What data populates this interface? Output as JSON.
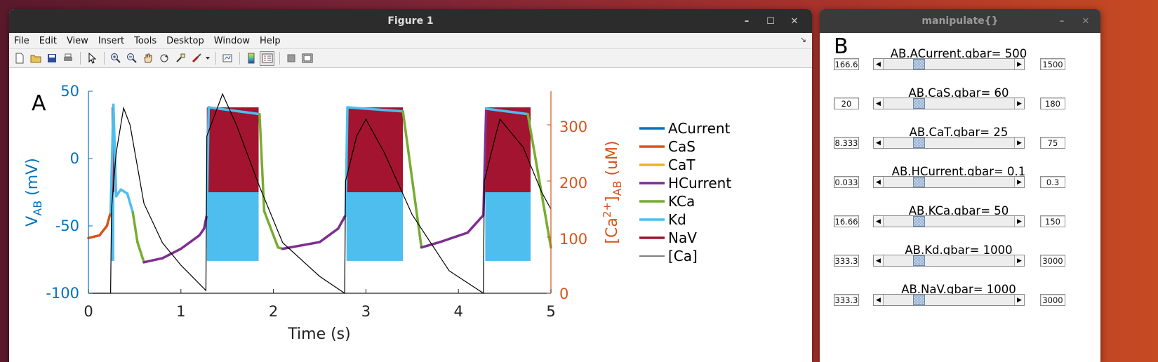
{
  "figure_window": {
    "title": "Figure 1",
    "menu": [
      "File",
      "Edit",
      "View",
      "Insert",
      "Tools",
      "Desktop",
      "Window",
      "Help"
    ],
    "panel_label": "A"
  },
  "manipulate_window": {
    "title": "manipulate{}",
    "panel_label": "B",
    "sliders": [
      {
        "label": "AB.ACurrent.gbar= 500",
        "min": "166.6",
        "max": "1500",
        "value": 500
      },
      {
        "label": "AB.CaS.gbar= 60",
        "min": "20",
        "max": "180",
        "value": 60
      },
      {
        "label": "AB.CaT.gbar= 25",
        "min": "8.333",
        "max": "75",
        "value": 25
      },
      {
        "label": "AB.HCurrent.gbar= 0.1",
        "min": "0.033",
        "max": "0.3",
        "value": 0.1
      },
      {
        "label": "AB.KCa.gbar= 50",
        "min": "16.66",
        "max": "150",
        "value": 50
      },
      {
        "label": "AB.Kd.gbar= 1000",
        "min": "333.3",
        "max": "3000",
        "value": 1000
      },
      {
        "label": "AB.NaV.gbar= 1000",
        "min": "333.3",
        "max": "3000",
        "value": 1000
      }
    ]
  },
  "chart_data": {
    "type": "line",
    "xlabel": "Time (s)",
    "ylabel_left_main": "V",
    "ylabel_left_sub": "AB",
    "ylabel_left_unit": " (mV)",
    "ylabel_right_pre": "[Ca",
    "ylabel_right_sup": "2+",
    "ylabel_right_mid": "]",
    "ylabel_right_sub": "AB",
    "ylabel_right_unit": " (uM)",
    "xlim": [
      0,
      5
    ],
    "ylim_left": [
      -100,
      50
    ],
    "ylim_right": [
      0,
      360
    ],
    "x_ticks": [
      "0",
      "1",
      "2",
      "3",
      "4",
      "5"
    ],
    "y_left_ticks": [
      "50",
      "0",
      "-50",
      "-100"
    ],
    "y_right_ticks": [
      "300",
      "200",
      "100",
      "0"
    ],
    "legend": [
      {
        "name": "ACurrent",
        "color": "#0072bd"
      },
      {
        "name": "CaS",
        "color": "#d95319"
      },
      {
        "name": "CaT",
        "color": "#edb120"
      },
      {
        "name": "HCurrent",
        "color": "#7e2f8e"
      },
      {
        "name": "KCa",
        "color": "#77ac30"
      },
      {
        "name": "Kd",
        "color": "#4dbeee"
      },
      {
        "name": "NaV",
        "color": "#a2142f"
      },
      {
        "name": "[Ca]",
        "color": "#000000"
      }
    ],
    "voltage_trace_approx": [
      [
        0.0,
        -59
      ],
      [
        0.12,
        -57
      ],
      [
        0.2,
        -50
      ],
      [
        0.24,
        -40
      ],
      [
        0.27,
        40
      ],
      [
        0.3,
        -28
      ],
      [
        0.35,
        -23
      ],
      [
        0.42,
        -26
      ],
      [
        0.48,
        -40
      ],
      [
        0.53,
        -62
      ],
      [
        0.6,
        -77
      ],
      [
        0.8,
        -74
      ],
      [
        1.0,
        -67
      ],
      [
        1.2,
        -57
      ],
      [
        1.25,
        -52
      ],
      [
        1.28,
        -42
      ],
      [
        1.3,
        38
      ],
      [
        1.85,
        33
      ],
      [
        1.9,
        -39
      ],
      [
        2.05,
        -66
      ],
      [
        2.1,
        -67
      ],
      [
        2.5,
        -62
      ],
      [
        2.7,
        -52
      ],
      [
        2.78,
        -42
      ],
      [
        2.8,
        38
      ],
      [
        3.4,
        35
      ],
      [
        3.6,
        -66
      ],
      [
        3.8,
        -62
      ],
      [
        4.1,
        -55
      ],
      [
        4.27,
        -42
      ],
      [
        4.3,
        37
      ],
      [
        4.75,
        33
      ],
      [
        5.0,
        -66
      ]
    ],
    "calcium_trace_approx": [
      [
        0.0,
        0
      ],
      [
        0.24,
        0
      ],
      [
        0.25,
        150
      ],
      [
        0.3,
        250
      ],
      [
        0.38,
        330
      ],
      [
        0.45,
        300
      ],
      [
        0.6,
        160
      ],
      [
        0.8,
        90
      ],
      [
        1.0,
        50
      ],
      [
        1.27,
        5
      ],
      [
        1.28,
        280
      ],
      [
        1.45,
        355
      ],
      [
        1.6,
        300
      ],
      [
        1.85,
        190
      ],
      [
        2.1,
        90
      ],
      [
        2.5,
        30
      ],
      [
        2.77,
        0
      ],
      [
        2.78,
        200
      ],
      [
        2.9,
        280
      ],
      [
        3.0,
        310
      ],
      [
        3.2,
        250
      ],
      [
        3.5,
        140
      ],
      [
        3.9,
        40
      ],
      [
        4.27,
        0
      ],
      [
        4.28,
        200
      ],
      [
        4.4,
        280
      ],
      [
        4.45,
        310
      ],
      [
        4.7,
        260
      ],
      [
        4.9,
        180
      ],
      [
        5.0,
        150
      ]
    ]
  }
}
